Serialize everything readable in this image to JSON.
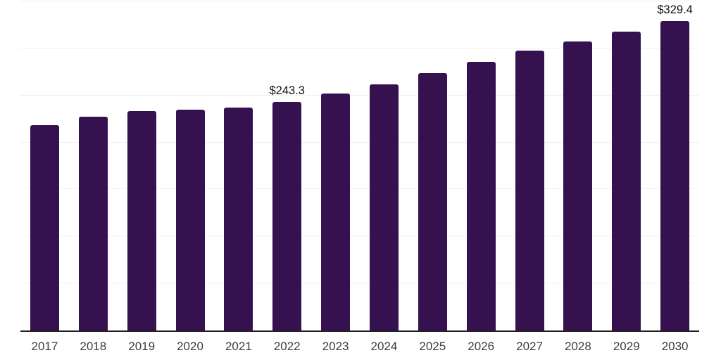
{
  "chart_data": {
    "type": "bar",
    "categories": [
      "2017",
      "2018",
      "2019",
      "2020",
      "2021",
      "2022",
      "2023",
      "2024",
      "2025",
      "2026",
      "2027",
      "2028",
      "2029",
      "2030"
    ],
    "values": [
      218.5,
      227.0,
      233.6,
      235.1,
      237.2,
      243.3,
      252.0,
      261.8,
      274.0,
      285.8,
      297.5,
      307.7,
      318.2,
      329.4
    ],
    "point_labels": [
      "",
      "",
      "",
      "",
      "",
      "$243.3",
      "",
      "",
      "",
      "",
      "",
      "",
      "",
      "$329.4"
    ],
    "title": "",
    "xlabel": "",
    "ylabel": "",
    "ylim": [
      0,
      350
    ],
    "grid_step": 50,
    "grid": true,
    "legend": false,
    "y_axis_tick_labels_visible": false,
    "colors": {
      "bar": "#36114F",
      "gridline": "#EFEFEF",
      "axis_line": "#222222",
      "x_tick_label": "#3D3D3D",
      "data_label": "#111111",
      "background": "#FFFFFF"
    }
  }
}
